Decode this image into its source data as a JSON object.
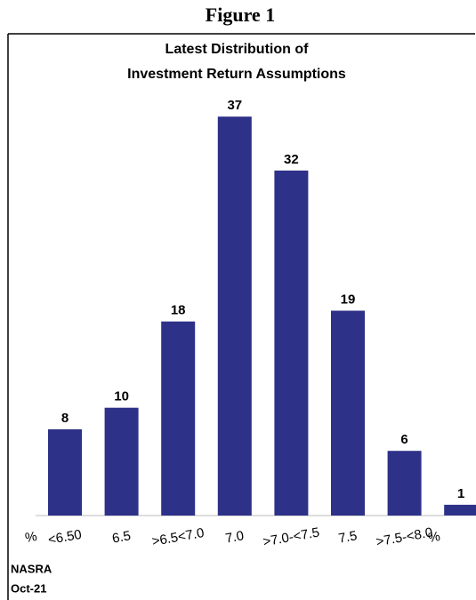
{
  "figure_label": "Figure 1",
  "chart_data": {
    "type": "bar",
    "title_lines": [
      "Latest Distribution of",
      "Investment Return Assumptions"
    ],
    "categories": [
      "<6.50",
      "6.5",
      ">6.5<7.0",
      "7.0",
      ">7.0-<7.5",
      "7.5",
      ">7.5-<8.0",
      "%"
    ],
    "values": [
      8,
      10,
      18,
      37,
      32,
      19,
      6,
      1
    ],
    "color": "#2e3188",
    "annotations": [
      "%"
    ],
    "source_lines": [
      "NASRA",
      "Oct-21"
    ]
  }
}
